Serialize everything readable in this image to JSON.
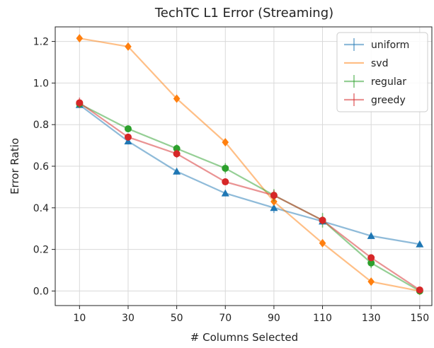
{
  "chart_data": {
    "type": "line",
    "title": "TechTC L1 Error (Streaming)",
    "xlabel": "# Columns Selected",
    "ylabel": "Error Ratio",
    "categories": [
      "10",
      "30",
      "50",
      "70",
      "90",
      "110",
      "130",
      "150"
    ],
    "x": [
      10,
      30,
      50,
      70,
      90,
      110,
      130,
      150
    ],
    "xlim": [
      0,
      155
    ],
    "ylim": [
      -0.07,
      1.27
    ],
    "yticks": [
      0.0,
      0.2,
      0.4,
      0.6,
      0.8,
      1.0,
      1.2
    ],
    "ytick_labels": [
      "0.0",
      "0.2",
      "0.4",
      "0.6",
      "0.8",
      "1.0",
      "1.2"
    ],
    "grid": true,
    "legend_position": "top-right",
    "series": [
      {
        "name": "uniform",
        "color": "#1f77b4",
        "marker": "triangle",
        "values": [
          0.895,
          0.72,
          0.575,
          0.47,
          0.4,
          0.335,
          0.265,
          0.225
        ],
        "errors": [
          0.01,
          0.015,
          0.015,
          0.015,
          0.025,
          0.015,
          0.01,
          0.01
        ]
      },
      {
        "name": "svd",
        "color": "#ff7f0e",
        "marker": "diamond",
        "values": [
          1.215,
          1.175,
          0.925,
          0.715,
          0.43,
          0.23,
          0.045,
          0.0
        ],
        "errors": [
          0,
          0,
          0,
          0,
          0,
          0,
          0,
          0
        ]
      },
      {
        "name": "regular",
        "color": "#2ca02c",
        "marker": "circle",
        "values": [
          0.9,
          0.78,
          0.685,
          0.59,
          0.46,
          0.34,
          0.135,
          0.0
        ],
        "errors": [
          0.01,
          0.015,
          0.02,
          0.025,
          0.03,
          0.035,
          0.025,
          0.01
        ]
      },
      {
        "name": "greedy",
        "color": "#d62728",
        "marker": "circle",
        "values": [
          0.905,
          0.74,
          0.66,
          0.525,
          0.46,
          0.34,
          0.16,
          0.005
        ],
        "errors": [
          0.025,
          0.015,
          0.02,
          0.01,
          0.025,
          0.02,
          0.015,
          0.01
        ]
      }
    ]
  }
}
